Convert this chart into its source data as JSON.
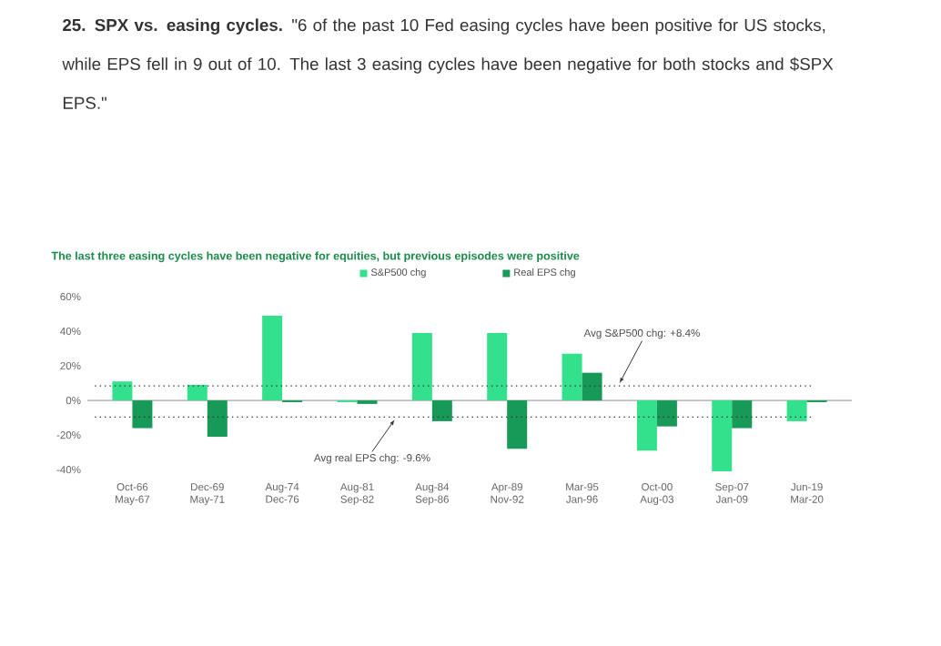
{
  "chart_data": {
    "type": "bar",
    "title": "**25. SPX vs. easing cycles.** \"6 of the past 10 Fed easing cycles have been positive for US stocks, while EPS fell in 9 out of 10. The last 3 easing cycles have been negative for both stocks and $SPX EPS.\"",
    "subtitle": "The last three easing cycles have been negative for equities, but previous episodes were positive",
    "categories": [
      "Oct-66 May-67",
      "Dec-69 May-71",
      "Aug-74 Dec-76",
      "Aug-81 Sep-82",
      "Aug-84 Sep-86",
      "Apr-89 Nov-92",
      "Mar-95 Jan-96",
      "Oct-00 Aug-03",
      "Sep-07 Jan-09",
      "Jun-19 Mar-20"
    ],
    "series": [
      {
        "name": "S&P500 chg",
        "color": "#33e08c",
        "values": [
          11,
          9,
          49,
          -1,
          39,
          39,
          27,
          -29,
          -41,
          -12
        ]
      },
      {
        "name": "Real EPS chg",
        "color": "#179a58",
        "values": [
          -16,
          -21,
          -1,
          -2,
          -12,
          -28,
          16,
          -15,
          -16,
          -1
        ]
      }
    ],
    "ylim": [
      -42,
      60
    ],
    "yticks": [
      {
        "value": -40,
        "label": "-40%"
      },
      {
        "value": -20,
        "label": "-20%"
      },
      {
        "value": 0,
        "label": "0%"
      },
      {
        "value": 20,
        "label": "20%"
      },
      {
        "value": 40,
        "label": "40%"
      },
      {
        "value": 60,
        "label": "60%"
      }
    ],
    "ref_lines": [
      {
        "axis": "y",
        "value": 8.4,
        "label": "Avg S&P500 chg: +8.4%",
        "color": "#333333",
        "line_style": "dotted"
      },
      {
        "axis": "y",
        "value": -9.6,
        "label": "Avg real EPS chg: -9.6%",
        "color": "#333333",
        "line_style": "dotted"
      }
    ],
    "legend": "top"
  }
}
